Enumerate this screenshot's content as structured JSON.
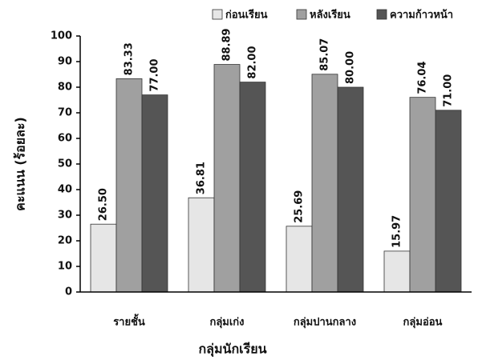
{
  "chart_data": {
    "type": "bar",
    "x_label": "กลุ่มนักเรียน",
    "y_label": "คะแนน (ร้อยละ)",
    "categories": [
      "รายชั้น",
      "กลุ่มเก่ง",
      "กลุ่มปานกลาง",
      "กลุ่มอ่อน"
    ],
    "series": [
      {
        "name": "ก่อนเรียน",
        "color": "#e6e6e6",
        "values": [
          26.5,
          36.81,
          25.69,
          15.97
        ],
        "value_labels": [
          "26.50",
          "36.81",
          "25.69",
          "15.97"
        ]
      },
      {
        "name": "หลังเรียน",
        "color": "#a0a0a0",
        "values": [
          83.33,
          88.89,
          85.07,
          76.04
        ],
        "value_labels": [
          "83.33",
          "88.89",
          "85.07",
          "76.04"
        ]
      },
      {
        "name": "ความก้าวหน้า",
        "color": "#555555",
        "values": [
          77,
          82,
          80,
          71
        ],
        "value_labels": [
          "77.00",
          "82.00",
          "80.00",
          "71.00"
        ]
      }
    ],
    "ylim": [
      0,
      100
    ],
    "yticks": [
      0,
      10,
      20,
      30,
      40,
      50,
      60,
      70,
      80,
      90,
      100
    ],
    "legend": "top-right"
  }
}
